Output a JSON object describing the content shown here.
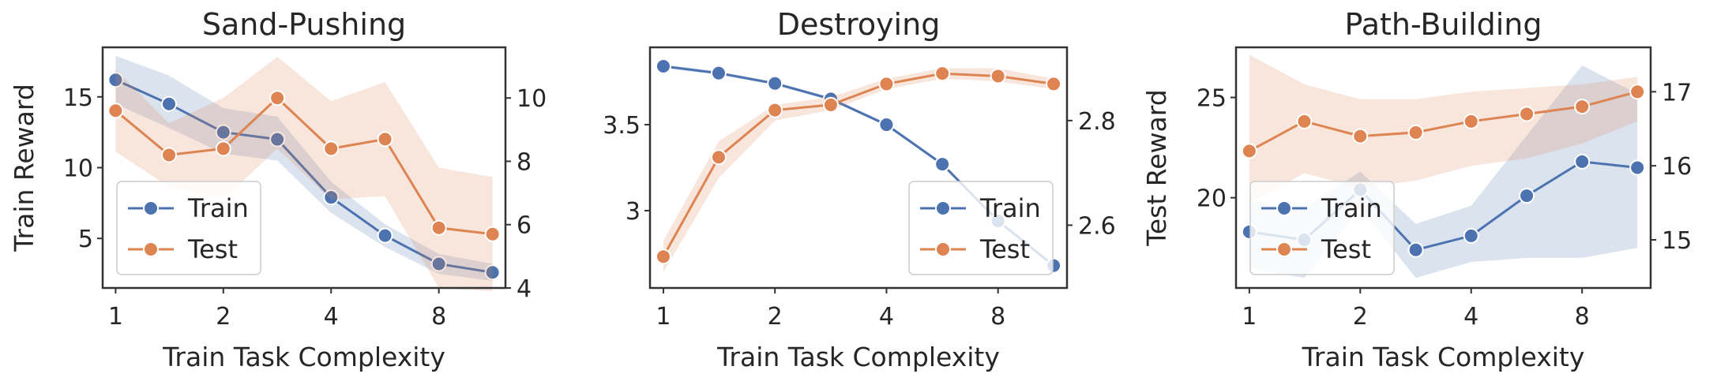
{
  "figure": {
    "x_axis_label": "Train Task Complexity",
    "left_axis_label": "Train Reward",
    "right_axis_label": "Test Reward"
  },
  "legend": {
    "train_label": "Train",
    "test_label": "Test"
  },
  "colors": {
    "train": "#4c72b0",
    "test": "#dd8452",
    "frame": "#333333",
    "grid": "none"
  },
  "chart_data": [
    {
      "type": "line",
      "title": "Sand-Pushing",
      "x_scale": "log2",
      "x": [
        1,
        1.41,
        2,
        2.83,
        4,
        5.66,
        8,
        11.3
      ],
      "xticks": [
        1,
        2,
        4,
        8
      ],
      "legend_position": "lower-left",
      "show_left_label": true,
      "show_right_label": false,
      "left_axis": {
        "ylim": [
          1.5,
          18.5
        ],
        "ticks": [
          5,
          10,
          15
        ]
      },
      "right_axis": {
        "ylim": [
          4,
          11.6
        ],
        "ticks": [
          4,
          6,
          8,
          10
        ]
      },
      "series": [
        {
          "name": "Train",
          "axis": "left",
          "values": [
            16.2,
            14.5,
            12.5,
            12.0,
            7.9,
            5.2,
            3.2,
            2.6
          ],
          "lower": [
            14.5,
            12.8,
            11.0,
            10.5,
            6.8,
            4.4,
            2.5,
            2.0
          ],
          "upper": [
            17.9,
            16.5,
            14.2,
            13.6,
            9.0,
            6.0,
            3.9,
            3.2
          ]
        },
        {
          "name": "Test",
          "axis": "right",
          "values": [
            9.6,
            8.2,
            8.4,
            10.0,
            8.4,
            8.7,
            5.9,
            5.7
          ],
          "lower": [
            8.3,
            7.2,
            6.8,
            8.4,
            6.8,
            6.9,
            4.0,
            3.9
          ],
          "upper": [
            10.9,
            9.2,
            10.0,
            11.3,
            9.9,
            10.5,
            7.8,
            7.5
          ]
        }
      ]
    },
    {
      "type": "line",
      "title": "Destroying",
      "x_scale": "log2",
      "x": [
        1,
        1.41,
        2,
        2.83,
        4,
        5.66,
        8,
        11.3
      ],
      "xticks": [
        1,
        2,
        4,
        8
      ],
      "legend_position": "lower-right",
      "show_left_label": false,
      "show_right_label": true,
      "left_axis": {
        "ylim": [
          2.55,
          3.95
        ],
        "ticks": [
          3.0,
          3.5
        ]
      },
      "right_axis": {
        "ylim": [
          2.48,
          2.94
        ],
        "ticks": [
          2.6,
          2.8
        ]
      },
      "series": [
        {
          "name": "Train",
          "axis": "left",
          "values": [
            3.84,
            3.8,
            3.74,
            3.65,
            3.5,
            3.27,
            2.94,
            2.68
          ],
          "lower": [
            3.83,
            3.79,
            3.73,
            3.64,
            3.49,
            3.26,
            2.93,
            2.67
          ],
          "upper": [
            3.85,
            3.81,
            3.75,
            3.66,
            3.51,
            3.28,
            2.95,
            2.69
          ]
        },
        {
          "name": "Test",
          "axis": "right",
          "values": [
            2.54,
            2.73,
            2.82,
            2.83,
            2.87,
            2.89,
            2.885,
            2.87
          ],
          "lower": [
            2.51,
            2.69,
            2.8,
            2.82,
            2.86,
            2.88,
            2.875,
            2.86
          ],
          "upper": [
            2.57,
            2.76,
            2.83,
            2.845,
            2.88,
            2.9,
            2.9,
            2.88
          ]
        }
      ]
    },
    {
      "type": "line",
      "title": "Path-Building",
      "x_scale": "log2",
      "x": [
        1,
        1.41,
        2,
        2.83,
        4,
        5.66,
        8,
        11.3
      ],
      "xticks": [
        1,
        2,
        4,
        8
      ],
      "legend_position": "lower-left",
      "show_left_label": false,
      "show_right_label": false,
      "left_axis": {
        "ylim": [
          15.5,
          27.5
        ],
        "ticks": [
          20,
          25
        ]
      },
      "right_axis": {
        "ylim": [
          14.35,
          17.6
        ],
        "ticks": [
          15,
          16,
          17
        ]
      },
      "series": [
        {
          "name": "Train",
          "axis": "left",
          "values": [
            18.3,
            17.9,
            20.4,
            17.4,
            18.1,
            20.1,
            21.8,
            21.5
          ],
          "lower": [
            16.5,
            16.0,
            19.5,
            16.0,
            16.8,
            17.0,
            17.0,
            17.5
          ],
          "upper": [
            19.8,
            19.5,
            21.3,
            18.7,
            19.6,
            23.1,
            26.6,
            25.2
          ]
        },
        {
          "name": "Test",
          "axis": "right",
          "values": [
            16.2,
            16.6,
            16.4,
            16.45,
            16.6,
            16.7,
            16.8,
            17.0
          ],
          "lower": [
            15.5,
            15.9,
            15.7,
            15.8,
            16.0,
            16.1,
            16.3,
            16.6
          ],
          "upper": [
            17.5,
            17.1,
            16.9,
            16.9,
            17.0,
            17.05,
            17.1,
            17.2
          ]
        }
      ]
    }
  ]
}
